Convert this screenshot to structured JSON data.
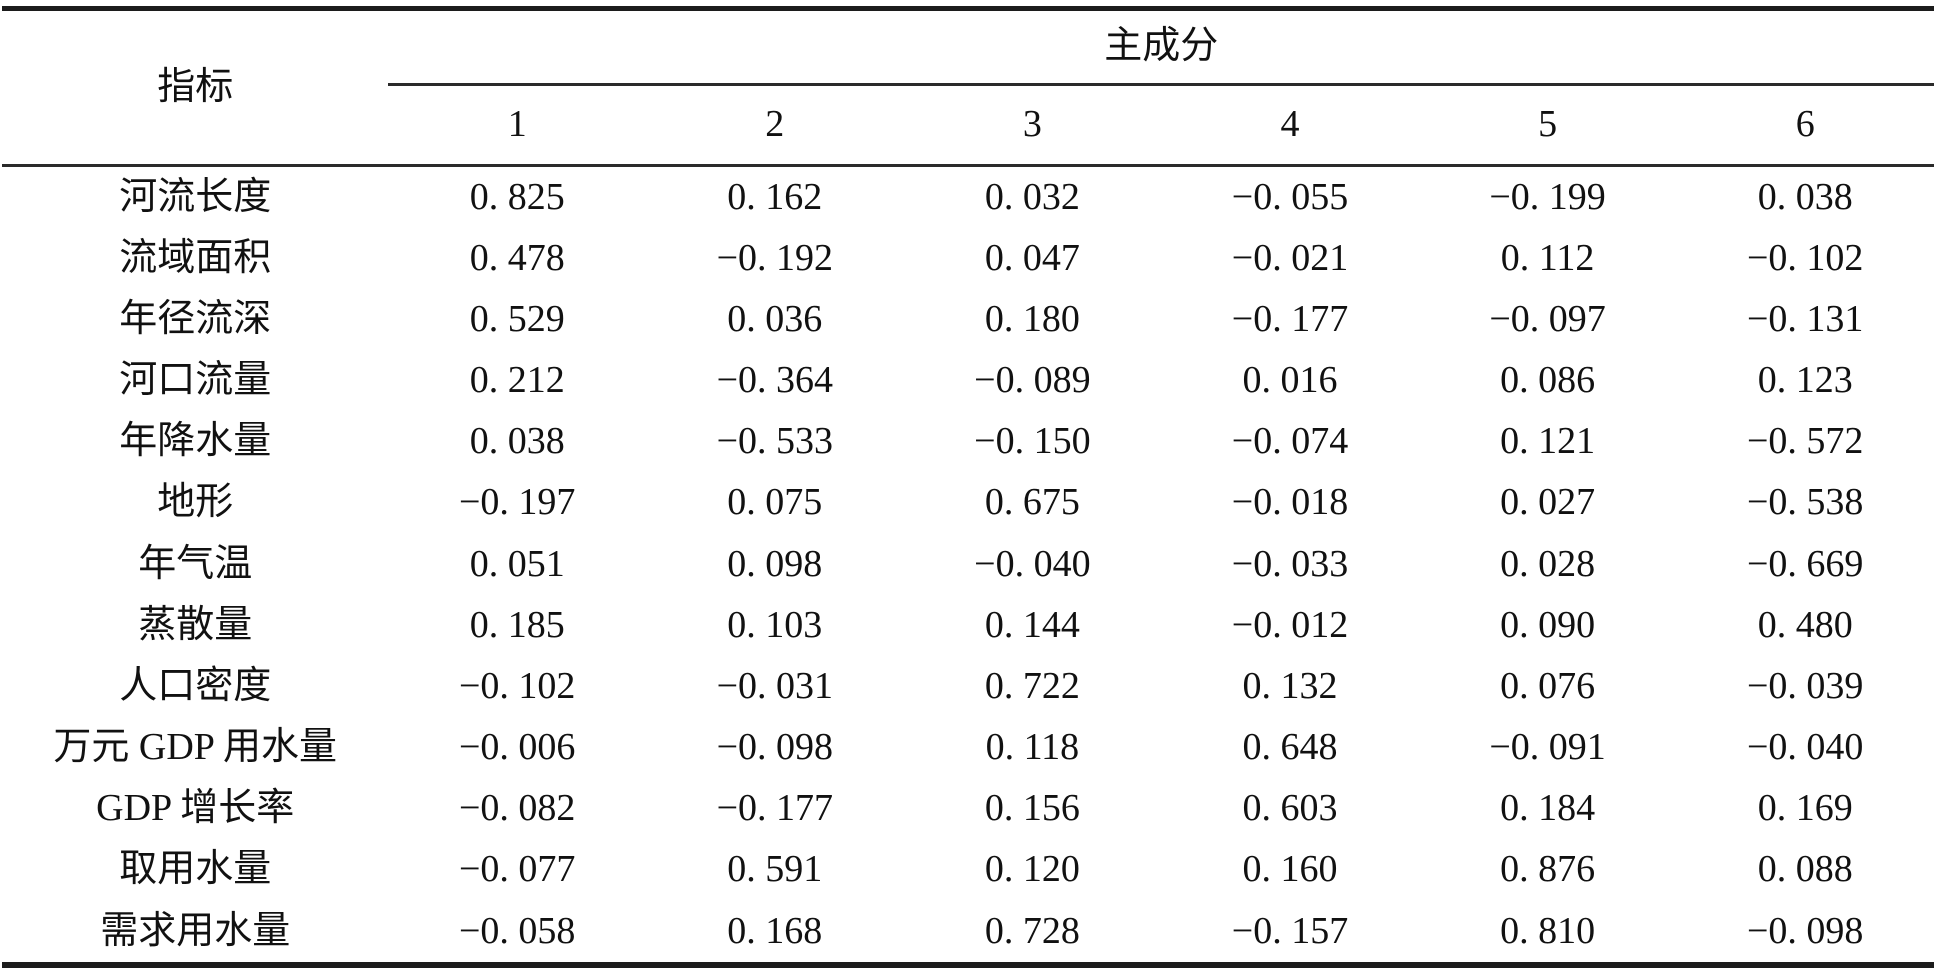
{
  "table": {
    "corner_header": "指标",
    "group_header": "主成分",
    "component_headers": [
      "1",
      "2",
      "3",
      "4",
      "5",
      "6"
    ],
    "rows": [
      {
        "label": "河流长度",
        "values": [
          "0. 825",
          "0. 162",
          "0. 032",
          "−0. 055",
          "−0. 199",
          "0. 038"
        ]
      },
      {
        "label": "流域面积",
        "values": [
          "0. 478",
          "−0. 192",
          "0. 047",
          "−0. 021",
          "0. 112",
          "−0. 102"
        ]
      },
      {
        "label": "年径流深",
        "values": [
          "0. 529",
          "0. 036",
          "0. 180",
          "−0. 177",
          "−0. 097",
          "−0. 131"
        ]
      },
      {
        "label": "河口流量",
        "values": [
          "0. 212",
          "−0. 364",
          "−0. 089",
          "0. 016",
          "0. 086",
          "0. 123"
        ]
      },
      {
        "label": "年降水量",
        "values": [
          "0. 038",
          "−0. 533",
          "−0. 150",
          "−0. 074",
          "0. 121",
          "−0. 572"
        ]
      },
      {
        "label": "地形",
        "values": [
          "−0. 197",
          "0. 075",
          "0. 675",
          "−0. 018",
          "0. 027",
          "−0. 538"
        ]
      },
      {
        "label": "年气温",
        "values": [
          "0. 051",
          "0. 098",
          "−0. 040",
          "−0. 033",
          "0. 028",
          "−0. 669"
        ]
      },
      {
        "label": "蒸散量",
        "values": [
          "0. 185",
          "0. 103",
          "0. 144",
          "−0. 012",
          "0. 090",
          "0. 480"
        ]
      },
      {
        "label": "人口密度",
        "values": [
          "−0. 102",
          "−0. 031",
          "0. 722",
          "0. 132",
          "0. 076",
          "−0. 039"
        ]
      },
      {
        "label": "万元 GDP 用水量",
        "values": [
          "−0. 006",
          "−0. 098",
          "0. 118",
          "0. 648",
          "−0. 091",
          "−0. 040"
        ]
      },
      {
        "label": "GDP 增长率",
        "values": [
          "−0. 082",
          "−0. 177",
          "0. 156",
          "0. 603",
          "0. 184",
          "0. 169"
        ]
      },
      {
        "label": "取用水量",
        "values": [
          "−0. 077",
          "0. 591",
          "0. 120",
          "0. 160",
          "0. 876",
          "0. 088"
        ]
      },
      {
        "label": "需求用水量",
        "values": [
          "−0. 058",
          "0. 168",
          "0. 728",
          "−0. 157",
          "0. 810",
          "−0. 098"
        ]
      }
    ]
  },
  "chart_data": {
    "type": "table",
    "row_label_header": "指标",
    "column_group_header": "主成分",
    "columns": [
      "1",
      "2",
      "3",
      "4",
      "5",
      "6"
    ],
    "rows": [
      "河流长度",
      "流域面积",
      "年径流深",
      "河口流量",
      "年降水量",
      "地形",
      "年气温",
      "蒸散量",
      "人口密度",
      "万元 GDP 用水量",
      "GDP 增长率",
      "取用水量",
      "需求用水量"
    ],
    "values": [
      [
        0.825,
        0.162,
        0.032,
        -0.055,
        -0.199,
        0.038
      ],
      [
        0.478,
        -0.192,
        0.047,
        -0.021,
        0.112,
        -0.102
      ],
      [
        0.529,
        0.036,
        0.18,
        -0.177,
        -0.097,
        -0.131
      ],
      [
        0.212,
        -0.364,
        -0.089,
        0.016,
        0.086,
        0.123
      ],
      [
        0.038,
        -0.533,
        -0.15,
        -0.074,
        0.121,
        -0.572
      ],
      [
        -0.197,
        0.075,
        0.675,
        -0.018,
        0.027,
        -0.538
      ],
      [
        0.051,
        0.098,
        -0.04,
        -0.033,
        0.028,
        -0.669
      ],
      [
        0.185,
        0.103,
        0.144,
        -0.012,
        0.09,
        0.48
      ],
      [
        -0.102,
        -0.031,
        0.722,
        0.132,
        0.076,
        -0.039
      ],
      [
        -0.006,
        -0.098,
        0.118,
        0.648,
        -0.091,
        -0.04
      ],
      [
        -0.082,
        -0.177,
        0.156,
        0.603,
        0.184,
        0.169
      ],
      [
        -0.077,
        0.591,
        0.12,
        0.16,
        0.876,
        0.088
      ],
      [
        -0.058,
        0.168,
        0.728,
        -0.157,
        0.81,
        -0.098
      ]
    ]
  }
}
